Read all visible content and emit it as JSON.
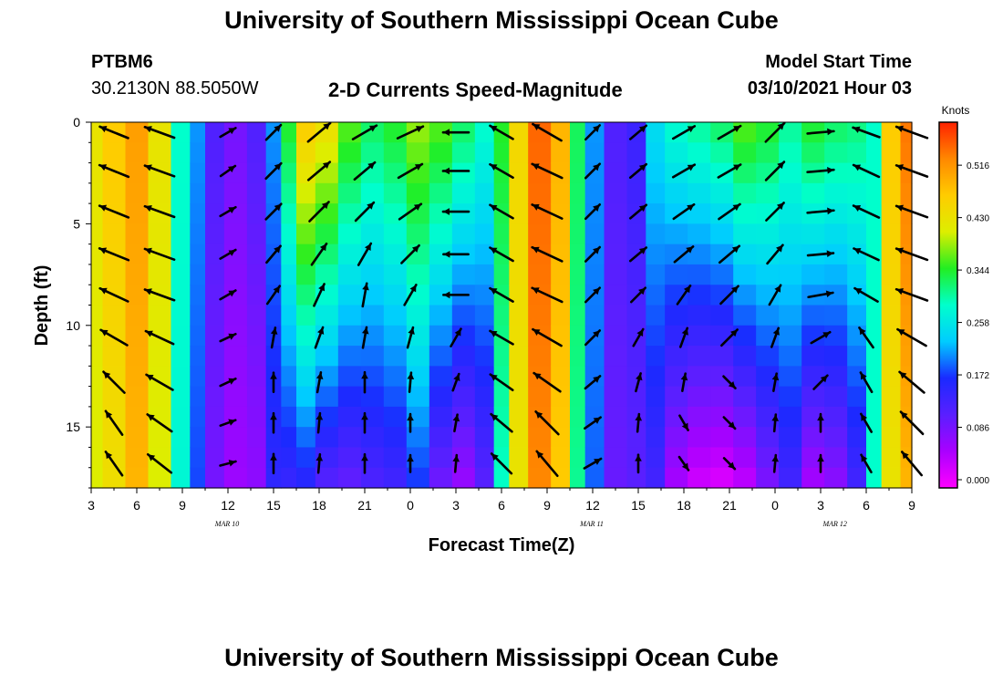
{
  "page": {
    "title_top": "University of Southern Mississippi Ocean Cube",
    "title_bottom": "University of Southern Mississippi Ocean Cube"
  },
  "header": {
    "station": "PTBM6",
    "location": "30.2130N 88.5050W",
    "plot_title": "2-D Currents Speed-Magnitude",
    "model_label": "Model Start Time",
    "model_time": "03/10/2021 Hour 03"
  },
  "chart_data": {
    "type": "heatmap",
    "title": "2-D Currents Speed-Magnitude",
    "xlabel": "Forecast Time(Z)",
    "ylabel": "Depth (ft)",
    "x_ticks": [
      "3",
      "6",
      "9",
      "12",
      "15",
      "18",
      "21",
      "0",
      "3",
      "6",
      "9",
      "12",
      "15",
      "18",
      "21",
      "0",
      "3",
      "6",
      "9"
    ],
    "x_tick_hours": [
      0,
      3,
      6,
      9,
      12,
      15,
      18,
      21,
      24,
      27,
      30,
      33,
      36,
      39,
      42,
      45,
      48,
      51,
      54
    ],
    "date_labels": [
      {
        "text": "MAR 10",
        "hour": 9
      },
      {
        "text": "MAR 11",
        "hour": 33
      },
      {
        "text": "MAR 12",
        "hour": 49
      }
    ],
    "xlim_hours": [
      0,
      54
    ],
    "y_ticks": [
      0,
      5,
      10,
      15
    ],
    "ylim": [
      0,
      18
    ],
    "colorbar": {
      "unit": "Knots",
      "ticks": [
        "0.516",
        "0.430",
        "0.344",
        "0.258",
        "0.172",
        "0.086",
        "0.000"
      ],
      "tick_values": [
        0.516,
        0.43,
        0.344,
        0.258,
        0.172,
        0.086,
        0.0
      ],
      "range": [
        0,
        0.6
      ],
      "stops": [
        "#ff00ff",
        "#aa00ff",
        "#5a1fff",
        "#1a2aff",
        "#00ccff",
        "#00ffcc",
        "#22ee22",
        "#ddee00",
        "#ffcc00",
        "#ff8800",
        "#ff2200"
      ]
    },
    "speed_columns": [
      {
        "hour": 0.0,
        "surface": 0.44,
        "bottom": 0.42
      },
      {
        "hour": 1.5,
        "surface": 0.48,
        "bottom": 0.45
      },
      {
        "hour": 3.0,
        "surface": 0.52,
        "bottom": 0.5
      },
      {
        "hour": 4.5,
        "surface": 0.44,
        "bottom": 0.42
      },
      {
        "hour": 6.0,
        "surface": 0.3,
        "bottom": 0.29
      },
      {
        "hour": 7.0,
        "surface": 0.22,
        "bottom": 0.19
      },
      {
        "hour": 8.0,
        "surface": 0.13,
        "bottom": 0.1
      },
      {
        "hour": 9.5,
        "surface": 0.1,
        "bottom": 0.07
      },
      {
        "hour": 11.0,
        "surface": 0.13,
        "bottom": 0.08
      },
      {
        "hour": 12.0,
        "surface": 0.22,
        "bottom": 0.16
      },
      {
        "hour": 13.0,
        "surface": 0.36,
        "bottom": 0.15
      },
      {
        "hour": 14.0,
        "surface": 0.48,
        "bottom": 0.16
      },
      {
        "hour": 15.5,
        "surface": 0.45,
        "bottom": 0.12
      },
      {
        "hour": 17.0,
        "surface": 0.38,
        "bottom": 0.11
      },
      {
        "hour": 18.5,
        "surface": 0.34,
        "bottom": 0.13
      },
      {
        "hour": 20.0,
        "surface": 0.36,
        "bottom": 0.14
      },
      {
        "hour": 21.5,
        "surface": 0.4,
        "bottom": 0.18
      },
      {
        "hour": 23.0,
        "surface": 0.38,
        "bottom": 0.1
      },
      {
        "hour": 24.5,
        "surface": 0.34,
        "bottom": 0.07
      },
      {
        "hour": 26.0,
        "surface": 0.3,
        "bottom": 0.12
      },
      {
        "hour": 27.0,
        "surface": 0.36,
        "bottom": 0.3
      },
      {
        "hour": 28.0,
        "surface": 0.46,
        "bottom": 0.44
      },
      {
        "hour": 29.5,
        "surface": 0.56,
        "bottom": 0.54
      },
      {
        "hour": 31.0,
        "surface": 0.5,
        "bottom": 0.48
      },
      {
        "hour": 32.0,
        "surface": 0.34,
        "bottom": 0.32
      },
      {
        "hour": 33.0,
        "surface": 0.22,
        "bottom": 0.2
      },
      {
        "hour": 34.5,
        "surface": 0.13,
        "bottom": 0.11
      },
      {
        "hour": 36.0,
        "surface": 0.15,
        "bottom": 0.12
      },
      {
        "hour": 37.0,
        "surface": 0.26,
        "bottom": 0.14
      },
      {
        "hour": 38.5,
        "surface": 0.3,
        "bottom": 0.06
      },
      {
        "hour": 40.0,
        "surface": 0.32,
        "bottom": 0.03
      },
      {
        "hour": 41.5,
        "surface": 0.34,
        "bottom": 0.02
      },
      {
        "hour": 43.0,
        "surface": 0.38,
        "bottom": 0.04
      },
      {
        "hour": 44.5,
        "surface": 0.36,
        "bottom": 0.09
      },
      {
        "hour": 46.0,
        "surface": 0.32,
        "bottom": 0.14
      },
      {
        "hour": 47.5,
        "surface": 0.36,
        "bottom": 0.06
      },
      {
        "hour": 49.0,
        "surface": 0.34,
        "bottom": 0.08
      },
      {
        "hour": 50.5,
        "surface": 0.33,
        "bottom": 0.14
      },
      {
        "hour": 51.5,
        "surface": 0.3,
        "bottom": 0.3
      },
      {
        "hour": 52.5,
        "surface": 0.48,
        "bottom": 0.44
      },
      {
        "hour": 54.0,
        "surface": 0.55,
        "bottom": 0.5
      }
    ],
    "vector_depths": [
      0.5,
      2.4,
      4.4,
      6.5,
      8.5,
      10.6,
      12.8,
      14.8,
      16.8
    ],
    "vectors": [
      {
        "hour": 1.5,
        "dirs": [
          202,
          202,
          202,
          202,
          205,
          210,
          225,
          235,
          235
        ],
        "mags": [
          0.44,
          0.46,
          0.46,
          0.46,
          0.45,
          0.44,
          0.42,
          0.4,
          0.4
        ]
      },
      {
        "hour": 4.5,
        "dirs": [
          200,
          200,
          200,
          200,
          200,
          205,
          210,
          215,
          218
        ],
        "mags": [
          0.46,
          0.46,
          0.46,
          0.46,
          0.46,
          0.44,
          0.44,
          0.42,
          0.42
        ]
      },
      {
        "hour": 9.0,
        "dirs": [
          -30,
          -35,
          -30,
          -30,
          -30,
          -25,
          -25,
          -20,
          -15
        ],
        "mags": [
          0.12,
          0.12,
          0.12,
          0.12,
          0.12,
          0.1,
          0.1,
          0.08,
          0.08
        ]
      },
      {
        "hour": 12.0,
        "dirs": [
          -45,
          -45,
          -45,
          -50,
          -55,
          -80,
          -90,
          -90,
          -90
        ],
        "mags": [
          0.2,
          0.22,
          0.22,
          0.22,
          0.22,
          0.18,
          0.16,
          0.16,
          0.16
        ]
      },
      {
        "hour": 15.0,
        "dirs": [
          -40,
          -40,
          -45,
          -55,
          -65,
          -70,
          -80,
          -85,
          -85
        ],
        "mags": [
          0.4,
          0.38,
          0.36,
          0.32,
          0.28,
          0.22,
          0.18,
          0.16,
          0.14
        ]
      },
      {
        "hour": 18.0,
        "dirs": [
          -30,
          -40,
          -45,
          -60,
          -80,
          -80,
          -90,
          -90,
          -90
        ],
        "mags": [
          0.36,
          0.34,
          0.32,
          0.3,
          0.26,
          0.2,
          0.18,
          0.16,
          0.14
        ]
      },
      {
        "hour": 21.0,
        "dirs": [
          -25,
          -30,
          -35,
          -45,
          -60,
          -75,
          -85,
          -90,
          -90
        ],
        "mags": [
          0.38,
          0.36,
          0.34,
          0.3,
          0.26,
          0.2,
          0.16,
          0.12,
          0.1
        ]
      },
      {
        "hour": 24.0,
        "dirs": [
          180,
          180,
          180,
          180,
          180,
          -60,
          -70,
          -80,
          -85
        ],
        "mags": [
          0.32,
          0.32,
          0.32,
          0.3,
          0.3,
          0.18,
          0.12,
          0.1,
          0.1
        ]
      },
      {
        "hour": 27.0,
        "dirs": [
          210,
          210,
          210,
          210,
          210,
          210,
          215,
          220,
          225
        ],
        "mags": [
          0.34,
          0.34,
          0.34,
          0.34,
          0.34,
          0.34,
          0.36,
          0.36,
          0.38
        ]
      },
      {
        "hour": 30.0,
        "dirs": [
          210,
          205,
          205,
          205,
          205,
          210,
          215,
          225,
          230
        ],
        "mags": [
          0.5,
          0.52,
          0.52,
          0.52,
          0.5,
          0.5,
          0.48,
          0.48,
          0.48
        ]
      },
      {
        "hour": 33.0,
        "dirs": [
          -45,
          -45,
          -45,
          -45,
          -45,
          -45,
          -40,
          -35,
          -30
        ],
        "mags": [
          0.18,
          0.18,
          0.18,
          0.18,
          0.18,
          0.18,
          0.16,
          0.16,
          0.16
        ]
      },
      {
        "hour": 36.0,
        "dirs": [
          -40,
          -40,
          -40,
          -40,
          -45,
          -60,
          -75,
          -85,
          -90
        ],
        "mags": [
          0.2,
          0.2,
          0.2,
          0.2,
          0.18,
          0.16,
          0.14,
          0.12,
          0.12
        ]
      },
      {
        "hour": 39.0,
        "dirs": [
          -30,
          -30,
          -35,
          -40,
          -55,
          -70,
          -80,
          60,
          55
        ],
        "mags": [
          0.3,
          0.3,
          0.3,
          0.28,
          0.24,
          0.18,
          0.12,
          0.1,
          0.08
        ]
      },
      {
        "hour": 42.0,
        "dirs": [
          -30,
          -30,
          -35,
          -40,
          -45,
          -45,
          45,
          45,
          45
        ],
        "mags": [
          0.32,
          0.32,
          0.32,
          0.32,
          0.3,
          0.24,
          0.1,
          0.08,
          0.06
        ]
      },
      {
        "hour": 45.0,
        "dirs": [
          -45,
          -45,
          -45,
          -50,
          -60,
          -70,
          -80,
          -85,
          -85
        ],
        "mags": [
          0.34,
          0.32,
          0.3,
          0.28,
          0.24,
          0.18,
          0.12,
          0.1,
          0.1
        ]
      },
      {
        "hour": 48.0,
        "dirs": [
          -5,
          -5,
          -5,
          -5,
          -10,
          -30,
          -45,
          -90,
          -90
        ],
        "mags": [
          0.34,
          0.34,
          0.34,
          0.32,
          0.3,
          0.22,
          0.16,
          0.12,
          0.1
        ]
      },
      {
        "hour": 51.0,
        "dirs": [
          200,
          205,
          205,
          205,
          210,
          235,
          240,
          240,
          240
        ],
        "mags": [
          0.38,
          0.38,
          0.38,
          0.36,
          0.34,
          0.28,
          0.24,
          0.2,
          0.18
        ]
      },
      {
        "hour": 54.0,
        "dirs": [
          200,
          200,
          200,
          200,
          200,
          210,
          220,
          225,
          230
        ],
        "mags": [
          0.52,
          0.52,
          0.52,
          0.52,
          0.52,
          0.5,
          0.48,
          0.46,
          0.44
        ]
      }
    ]
  }
}
